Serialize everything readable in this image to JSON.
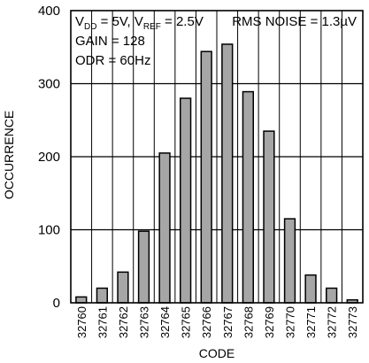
{
  "chart_data": {
    "type": "bar",
    "categories": [
      "32760",
      "32761",
      "32762",
      "32763",
      "32764",
      "32765",
      "32766",
      "32767",
      "32768",
      "32769",
      "32770",
      "32771",
      "32772",
      "32773"
    ],
    "values": [
      8,
      20,
      42,
      98,
      205,
      280,
      344,
      354,
      289,
      235,
      115,
      38,
      20,
      4
    ],
    "xlabel": "CODE",
    "ylabel": "OCCURRENCE",
    "ylim": [
      0,
      400
    ],
    "yticks": [
      0,
      100,
      200,
      300,
      400
    ],
    "grid": true,
    "bar_color": "#a6a6a6",
    "annotations": {
      "vdd_main": "V",
      "vdd_sub": "DD",
      "vdd_value": " = 5V, V",
      "vref_sub": "REF",
      "vref_value": " = 2.5V",
      "gain": "GAIN = 128",
      "odr": "ODR = 60Hz",
      "noise": "RMS NOISE = 1.3µV"
    }
  }
}
